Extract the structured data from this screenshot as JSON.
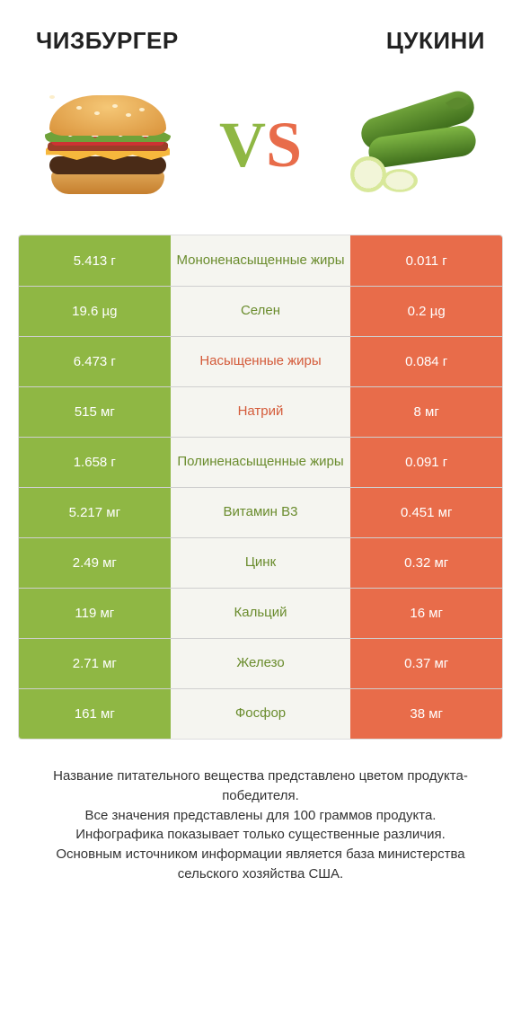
{
  "header": {
    "left_title": "ЧИЗБУРГЕР",
    "right_title": "ЦУКИНИ",
    "vs_v": "V",
    "vs_s": "S"
  },
  "colors": {
    "green": "#8fb744",
    "orange": "#e86c4a",
    "label_green": "#6a8c2d",
    "label_orange": "#d45b3a",
    "mid_bg": "#f5f5f0",
    "page_bg": "#ffffff",
    "border": "#cfcfcf"
  },
  "typography": {
    "title_fontsize": 26,
    "cell_fontsize": 15,
    "vs_fontsize": 72,
    "footnote_fontsize": 15
  },
  "table": {
    "rows": [
      {
        "left": "5.413 г",
        "label": "Мононенасыщенные жиры",
        "right": "0.011 г",
        "label_side": "green"
      },
      {
        "left": "19.6 µg",
        "label": "Селен",
        "right": "0.2 µg",
        "label_side": "green"
      },
      {
        "left": "6.473 г",
        "label": "Насыщенные жиры",
        "right": "0.084 г",
        "label_side": "orange"
      },
      {
        "left": "515 мг",
        "label": "Натрий",
        "right": "8 мг",
        "label_side": "orange"
      },
      {
        "left": "1.658 г",
        "label": "Полиненасыщенные жиры",
        "right": "0.091 г",
        "label_side": "green"
      },
      {
        "left": "5.217 мг",
        "label": "Витамин B3",
        "right": "0.451 мг",
        "label_side": "green"
      },
      {
        "left": "2.49 мг",
        "label": "Цинк",
        "right": "0.32 мг",
        "label_side": "green"
      },
      {
        "left": "119 мг",
        "label": "Кальций",
        "right": "16 мг",
        "label_side": "green"
      },
      {
        "left": "2.71 мг",
        "label": "Железо",
        "right": "0.37 мг",
        "label_side": "green"
      },
      {
        "left": "161 мг",
        "label": "Фосфор",
        "right": "38 мг",
        "label_side": "green"
      }
    ]
  },
  "footnote": {
    "l1": "Название питательного вещества представлено цветом продукта-победителя.",
    "l2": "Все значения представлены для 100 граммов продукта.",
    "l3": "Инфографика показывает только существенные различия.",
    "l4": "Основным источником информации является база министерства сельского хозяйства США."
  }
}
